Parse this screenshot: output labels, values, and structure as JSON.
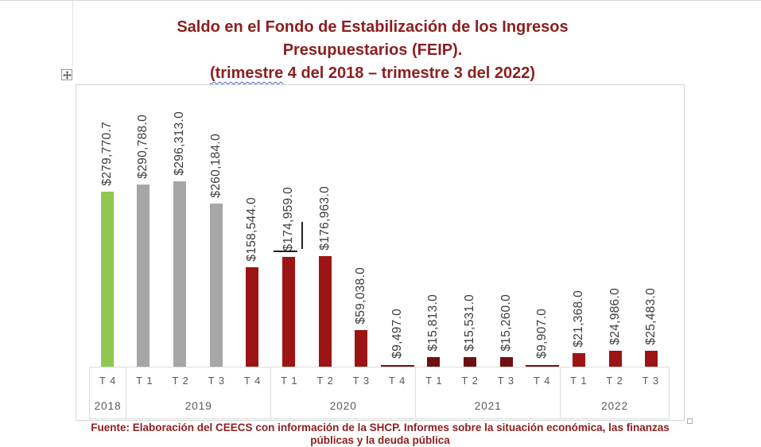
{
  "title": {
    "line1": "Saldo en el Fondo de Estabilización de los Ingresos",
    "line2": "Presupuestarios (FEIP).",
    "line3_squiggle_word": "(trimestre",
    "line3_rest": " 4 del 2018 – trimestre 3 del 2022)"
  },
  "footer": {
    "line1": "Fuente: Elaboración del CEECS con información de la SHCP. Informes sobre la situación económica, las finanzas",
    "line2": "públicas y la deuda pública"
  },
  "icons": {
    "move_handle": "move-cross-icon",
    "object_anchor": "selection-square"
  },
  "chart_data": {
    "type": "bar",
    "title": "Saldo en el Fondo de Estabilización de los Ingresos Presupuestarios (FEIP). (trimestre 4 del 2018 – trimestre 3 del 2022)",
    "xlabel": "",
    "ylabel": "",
    "ylim": [
      0,
      296313
    ],
    "gridlines": false,
    "legend": false,
    "label_rotation": "vertical-bottom-to-top",
    "year_groups": [
      {
        "label": "2018",
        "span": 1
      },
      {
        "label": "2019",
        "span": 4
      },
      {
        "label": "2020",
        "span": 4
      },
      {
        "label": "2021",
        "span": 4
      },
      {
        "label": "2022",
        "span": 3
      }
    ],
    "points": [
      {
        "quarter": "T 4",
        "year": "2018",
        "value": 279770.7,
        "label": "$279,770.7",
        "color": "#8FC751",
        "render": "bar"
      },
      {
        "quarter": "T 1",
        "year": "2019",
        "value": 290788.0,
        "label": "$290,788.0",
        "color": "#A6A6A6",
        "render": "bar"
      },
      {
        "quarter": "T 2",
        "year": "2019",
        "value": 296313.0,
        "label": "$296,313.0",
        "color": "#A6A6A6",
        "render": "bar"
      },
      {
        "quarter": "T 3",
        "year": "2019",
        "value": 260184.0,
        "label": "$260,184.0",
        "color": "#A6A6A6",
        "render": "bar"
      },
      {
        "quarter": "T 4",
        "year": "2019",
        "value": 158544.0,
        "label": "$158,544.0",
        "color": "#9C1414",
        "render": "bar"
      },
      {
        "quarter": "T 1",
        "year": "2020",
        "value": 174959.0,
        "label": "$174,959.0",
        "color": "#9C1414",
        "render": "bar"
      },
      {
        "quarter": "T 2",
        "year": "2020",
        "value": 176963.0,
        "label": "$176,963.0",
        "color": "#9C1414",
        "render": "bar"
      },
      {
        "quarter": "T 3",
        "year": "2020",
        "value": 59038.0,
        "label": "$59,038.0",
        "color": "#9C1414",
        "render": "bar"
      },
      {
        "quarter": "T 4",
        "year": "2020",
        "value": 9497.0,
        "label": "$9,497.0",
        "color": "#7A1010",
        "render": "flat-line"
      },
      {
        "quarter": "T 1",
        "year": "2021",
        "value": 15813.0,
        "label": "$15,813.0",
        "color": "#701010",
        "render": "bar"
      },
      {
        "quarter": "T 2",
        "year": "2021",
        "value": 15531.0,
        "label": "$15,531.0",
        "color": "#701010",
        "render": "bar"
      },
      {
        "quarter": "T 3",
        "year": "2021",
        "value": 15260.0,
        "label": "$15,260.0",
        "color": "#701010",
        "render": "bar"
      },
      {
        "quarter": "T 4",
        "year": "2021",
        "value": 9907.0,
        "label": "$9,907.0",
        "color": "#7A1010",
        "render": "flat-line"
      },
      {
        "quarter": "T 1",
        "year": "2022",
        "value": 21368.0,
        "label": "$21,368.0",
        "color": "#9C1414",
        "render": "bar"
      },
      {
        "quarter": "T 2",
        "year": "2022",
        "value": 24986.0,
        "label": "$24,986.0",
        "color": "#9C1414",
        "render": "bar"
      },
      {
        "quarter": "T 3",
        "year": "2022",
        "value": 25483.0,
        "label": "$25,483.0",
        "color": "#9C1414",
        "render": "bar"
      }
    ],
    "colors_legend": {
      "green_start": "#8FC751",
      "gray_2019": "#A6A6A6",
      "dark_red": "#9C1414",
      "darker_red_2021": "#701010"
    }
  }
}
